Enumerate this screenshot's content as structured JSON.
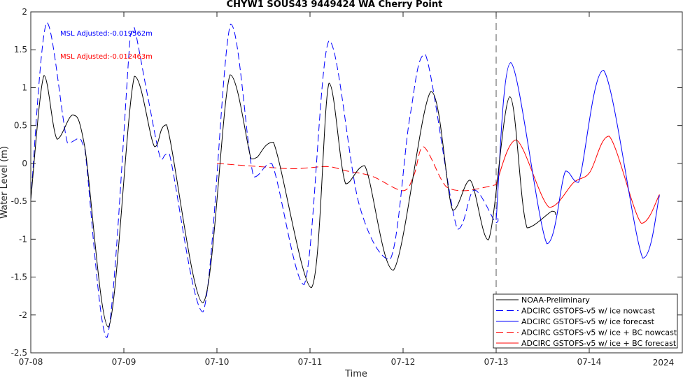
{
  "chart_data": {
    "type": "line",
    "title": "CHYW1 SOUS43 9449424 WA Cherry Point",
    "xlabel": "Time",
    "ylabel": "Water Level (m)",
    "year_label": "2024",
    "xlim": [
      "07-08",
      "07-15"
    ],
    "ylim": [
      -2.5,
      2
    ],
    "x_tick_labels": [
      "07-08",
      "07-09",
      "07-10",
      "07-11",
      "07-12",
      "07-13",
      "07-14"
    ],
    "y_ticks": [
      -2.5,
      -2,
      -1.5,
      -1,
      -0.5,
      0,
      0.5,
      1,
      1.5,
      2
    ],
    "y_tick_labels": [
      "-2.5",
      "-2",
      "-1.5",
      "-1",
      "-0.5",
      "0",
      "0.5",
      "1",
      "1.5",
      "2"
    ],
    "nowcast_forecast_divider": "07-13",
    "grid": false,
    "legend_position": "bottom-right",
    "annotations": [
      {
        "text": "MSL Adjusted:-0.019562m",
        "color": "#0000ff"
      },
      {
        "text": "MSL Adjusted:-0.012463m",
        "color": "#ff0000"
      }
    ],
    "series": [
      {
        "name": "NOAA-Preliminary",
        "color": "#000000",
        "dash": "solid",
        "x": [
          "07-08 00:00",
          "07-08 03:24",
          "07-08 06:47",
          "07-08 10:50",
          "07-08 13:55",
          "07-08 20:02",
          "07-09 02:43",
          "07-09 07:55",
          "07-09 11:02",
          "07-09 20:24",
          "07-10 03:22",
          "07-10 08:48",
          "07-10 10:20",
          "07-10 14:34",
          "07-11 00:22",
          "07-11 04:54",
          "07-11 09:12",
          "07-11 14:07",
          "07-11 21:30",
          "07-12 07:11",
          "07-12 12:48",
          "07-12 17:17",
          "07-12 22:01",
          "07-13 03:31",
          "07-13 07:58",
          "07-13 14:24",
          "07-13 15:22"
        ],
        "y": [
          -0.48,
          1.16,
          0.32,
          0.64,
          0.22,
          -2.16,
          1.15,
          0.22,
          0.51,
          -1.84,
          1.17,
          0.06,
          0.08,
          0.28,
          -1.64,
          1.06,
          -0.27,
          -0.03,
          -1.41,
          0.95,
          -0.62,
          -0.22,
          -1.01,
          0.88,
          -0.85,
          -0.63,
          -0.68
        ]
      },
      {
        "name": "ADCIRC GSTOFS-v5 w/ ice nowcast",
        "color": "#0000ff",
        "dash": "dashed",
        "x": [
          "07-08 00:00",
          "07-08 04:07",
          "07-08 09:27",
          "07-08 12:23",
          "07-08 13:55",
          "07-08 19:39",
          "07-09 01:41",
          "07-09 02:43",
          "07-09 06:06",
          "07-09 09:33",
          "07-09 11:43",
          "07-09 20:24",
          "07-10 03:32",
          "07-10 09:29",
          "07-10 14:09",
          "07-10 22:30",
          "07-11 04:54",
          "07-11 12:40",
          "07-11 20:39",
          "07-12 01:43",
          "07-12 05:45",
          "07-12 14:00",
          "07-12 18:22",
          "07-12 23:51",
          "07-13 00:28"
        ],
        "y": [
          -0.47,
          1.86,
          0.27,
          0.33,
          0.2,
          -2.3,
          1.7,
          1.79,
          0.9,
          0.05,
          0.13,
          -1.96,
          1.84,
          -0.18,
          0.0,
          -1.6,
          1.62,
          -0.54,
          -1.27,
          0.6,
          1.44,
          -0.87,
          -0.35,
          -0.78,
          -0.72
        ]
      },
      {
        "name": "ADCIRC GSTOFS-v5 w/ ice forecast",
        "color": "#0000ff",
        "dash": "solid",
        "x": [
          "07-13 00:00",
          "07-13 03:47",
          "07-13 13:05",
          "07-13 17:53",
          "07-13 21:15",
          "07-14 03:42",
          "07-14 13:48",
          "07-14 18:07"
        ],
        "y": [
          -0.74,
          1.33,
          -1.06,
          -0.1,
          -0.25,
          1.23,
          -1.25,
          -0.42
        ]
      },
      {
        "name": "ADCIRC GSTOFS-v5 w/ ice + BC nowcast",
        "color": "#ff0000",
        "dash": "dashed",
        "x": [
          "07-10 00:00",
          "07-10 10:22",
          "07-10 19:48",
          "07-11 04:09",
          "07-11 09:31",
          "07-11 16:02",
          "07-11 23:55",
          "07-12 02:49",
          "07-12 05:13",
          "07-12 09:57",
          "07-12 11:57",
          "07-12 16:02",
          "07-12 23:16",
          "07-13 00:00"
        ],
        "y": [
          0.0,
          -0.04,
          -0.07,
          -0.04,
          -0.1,
          -0.17,
          -0.36,
          -0.15,
          0.22,
          -0.22,
          -0.33,
          -0.36,
          -0.29,
          -0.26
        ]
      },
      {
        "name": "ADCIRC GSTOFS-v5 w/ ice + BC forecast",
        "color": "#ff0000",
        "dash": "solid",
        "x": [
          "07-13 00:00",
          "07-13 05:12",
          "07-13 13:41",
          "07-13 20:02",
          "07-14 00:06",
          "07-14 05:08",
          "07-14 13:26",
          "07-14 18:07"
        ],
        "y": [
          -0.27,
          0.31,
          -0.58,
          -0.25,
          -0.12,
          0.36,
          -0.79,
          -0.41
        ]
      }
    ]
  }
}
